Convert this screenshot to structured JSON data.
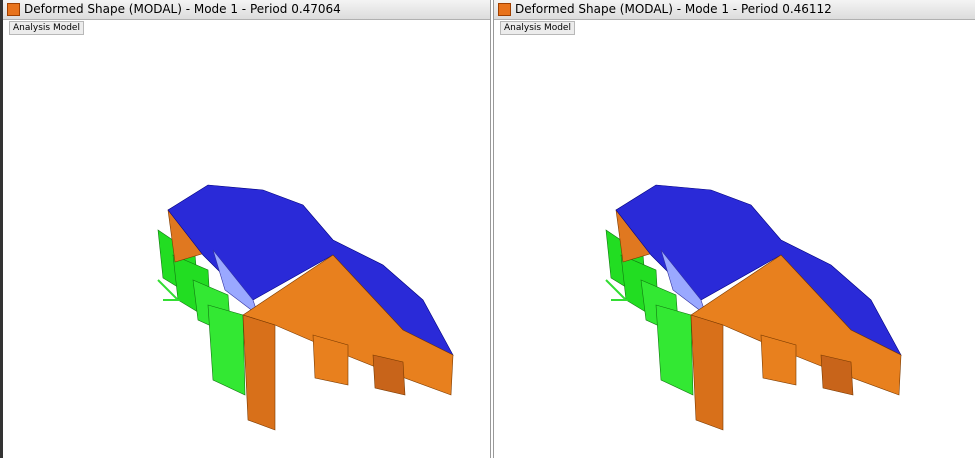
{
  "windows": [
    {
      "title": "Deformed Shape (MODAL) - Mode 1 - Period 0.47064",
      "tab": "Analysis Model"
    },
    {
      "title": "Deformed Shape (MODAL) - Mode 1 - Period 0.46112",
      "tab": "Analysis Model"
    }
  ]
}
